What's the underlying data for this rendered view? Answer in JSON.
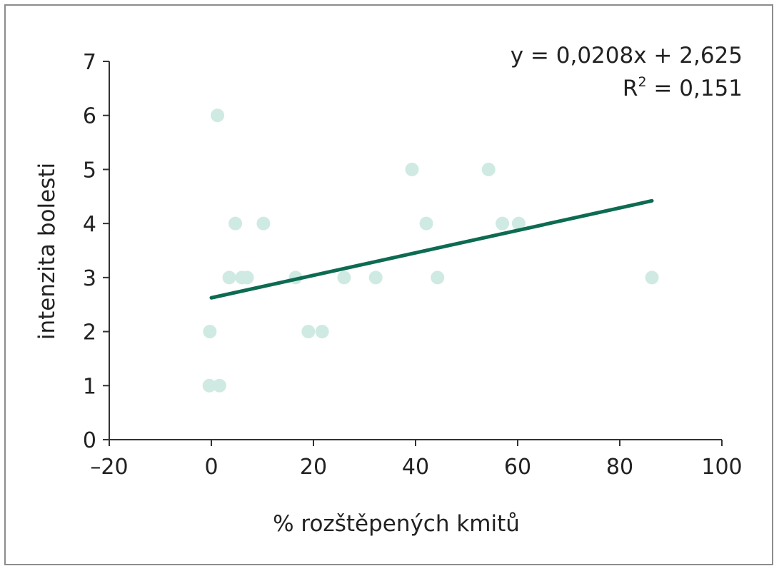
{
  "chart_data": {
    "type": "scatter",
    "xlabel": "% rozštěpených kmitů",
    "ylabel": "intenzita bolesti",
    "xlim": [
      -20,
      100
    ],
    "ylim": [
      0,
      7
    ],
    "x_ticks": [
      -20,
      0,
      20,
      40,
      60,
      80,
      100
    ],
    "y_ticks": [
      0,
      1,
      2,
      3,
      4,
      5,
      6,
      7
    ],
    "x_tick_labels": [
      "–20",
      "0",
      "20",
      "40",
      "60",
      "80",
      "100"
    ],
    "y_tick_labels": [
      "0",
      "1",
      "2",
      "3",
      "4",
      "5",
      "6",
      "7"
    ],
    "grid": false,
    "points": [
      {
        "x": 1.2,
        "y": 6
      },
      {
        "x": -0.3,
        "y": 2
      },
      {
        "x": -0.4,
        "y": 1
      },
      {
        "x": 1.6,
        "y": 1
      },
      {
        "x": 4.7,
        "y": 4
      },
      {
        "x": 10.2,
        "y": 4
      },
      {
        "x": 3.5,
        "y": 3
      },
      {
        "x": 6.0,
        "y": 3
      },
      {
        "x": 7.0,
        "y": 3
      },
      {
        "x": 16.5,
        "y": 3
      },
      {
        "x": 19.0,
        "y": 2
      },
      {
        "x": 21.7,
        "y": 2
      },
      {
        "x": 26.0,
        "y": 3
      },
      {
        "x": 32.2,
        "y": 3
      },
      {
        "x": 39.3,
        "y": 5
      },
      {
        "x": 42.1,
        "y": 4
      },
      {
        "x": 44.3,
        "y": 3
      },
      {
        "x": 54.3,
        "y": 5
      },
      {
        "x": 57.0,
        "y": 4
      },
      {
        "x": 60.2,
        "y": 4
      },
      {
        "x": 86.3,
        "y": 3
      }
    ],
    "trendline": {
      "slope": 0.0208,
      "intercept": 2.625,
      "x_range": [
        0,
        86.3
      ]
    },
    "annotation": {
      "equation": "y = 0,0208x + 2,625",
      "r_label": "R",
      "r_exp": "2",
      "r_value": " = 0,151"
    },
    "colors": {
      "points": "#cfeae2",
      "trendline": "#0d6b52",
      "axis": "#333333"
    }
  }
}
